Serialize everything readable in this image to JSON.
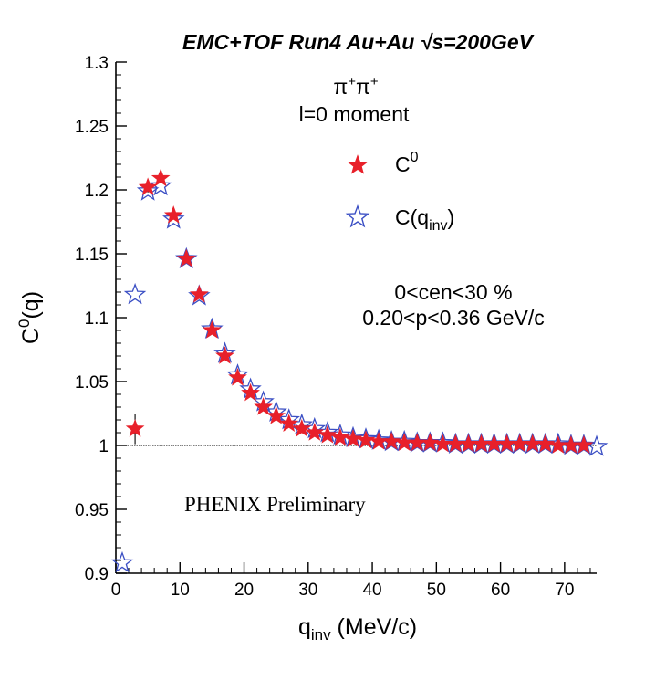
{
  "chart_data": {
    "type": "scatter",
    "title": "EMC+TOF Run4 Au+Au √s=200GeV",
    "xlabel": "q",
    "xlabel_sub": "inv",
    "xlabel_unit": " (MeV/c)",
    "ylabel": "C",
    "ylabel_sup": "0",
    "ylabel_tail": "(q)",
    "xlim": [
      0,
      75
    ],
    "ylim": [
      0.9,
      1.3
    ],
    "xticks": [
      0,
      10,
      20,
      30,
      40,
      50,
      60,
      70
    ],
    "yticks": [
      0.9,
      0.95,
      1.0,
      1.05,
      1.1,
      1.15,
      1.2,
      1.25,
      1.3
    ],
    "ytick_labels": [
      "0.9",
      "0.95",
      "1",
      "1.05",
      "1.1",
      "1.15",
      "1.2",
      "1.25",
      "1.3"
    ],
    "reference_line": 1.0,
    "annotations": {
      "pair_base1": "π",
      "pair_sup1": "+",
      "pair_base2": "π",
      "pair_sup2": "+",
      "moment": "l=0 moment",
      "centrality": "0<cen<30 %",
      "momentum": "0.20<p<0.36 GeV/c",
      "preliminary": "PHENIX Preliminary"
    },
    "legend": {
      "position": "top-right",
      "entries": [
        {
          "base": "C",
          "sup": "0",
          "sub": "",
          "tail": ""
        },
        {
          "base": "C(q",
          "sup": "",
          "sub": "inv",
          "tail": ")"
        }
      ]
    },
    "series": [
      {
        "name": "C0",
        "marker": "filled-star",
        "color": "#e8202a",
        "x": [
          3,
          5,
          7,
          9,
          11,
          13,
          15,
          17,
          19,
          21,
          23,
          25,
          27,
          29,
          31,
          33,
          35,
          37,
          39,
          41,
          43,
          45,
          47,
          49,
          51,
          53,
          55,
          57,
          59,
          61,
          63,
          65,
          67,
          69,
          71,
          73
        ],
        "y": [
          1.013,
          1.202,
          1.209,
          1.18,
          1.146,
          1.118,
          1.09,
          1.07,
          1.053,
          1.041,
          1.03,
          1.023,
          1.017,
          1.013,
          1.01,
          1.008,
          1.006,
          1.005,
          1.004,
          1.003,
          1.003,
          1.002,
          1.002,
          1.002,
          1.001,
          1.001,
          1.001,
          1.001,
          1.001,
          1.001,
          1.001,
          1.001,
          1.001,
          1.0,
          1.0,
          1.0
        ],
        "err": [
          0.012,
          0.004,
          0.003,
          0.003,
          0.002,
          0.002,
          0.002,
          0.002,
          0.002,
          0.002,
          0.001,
          0.001,
          0.001,
          0.001,
          0.001,
          0.001,
          0.001,
          0.001,
          0.001,
          0.001,
          0.001,
          0.001,
          0.001,
          0.001,
          0.001,
          0.001,
          0.001,
          0.001,
          0.001,
          0.001,
          0.001,
          0.001,
          0.001,
          0.001,
          0.001,
          0.001
        ]
      },
      {
        "name": "C(qinv)",
        "marker": "open-star",
        "color": "#3b4fc4",
        "x": [
          1,
          3,
          5,
          7,
          9,
          11,
          13,
          15,
          17,
          19,
          21,
          23,
          25,
          27,
          29,
          31,
          33,
          35,
          37,
          39,
          41,
          43,
          45,
          47,
          49,
          51,
          53,
          55,
          57,
          59,
          61,
          63,
          65,
          67,
          69,
          71,
          73,
          75
        ],
        "y": [
          0.908,
          1.118,
          1.199,
          1.203,
          1.177,
          1.146,
          1.117,
          1.091,
          1.072,
          1.055,
          1.044,
          1.034,
          1.026,
          1.02,
          1.016,
          1.013,
          1.01,
          1.008,
          1.006,
          1.005,
          1.004,
          1.003,
          1.003,
          1.002,
          1.002,
          1.002,
          1.001,
          1.001,
          1.001,
          1.001,
          1.001,
          1.001,
          1.001,
          1.001,
          1.001,
          1.0,
          1.0,
          0.999
        ]
      }
    ]
  }
}
